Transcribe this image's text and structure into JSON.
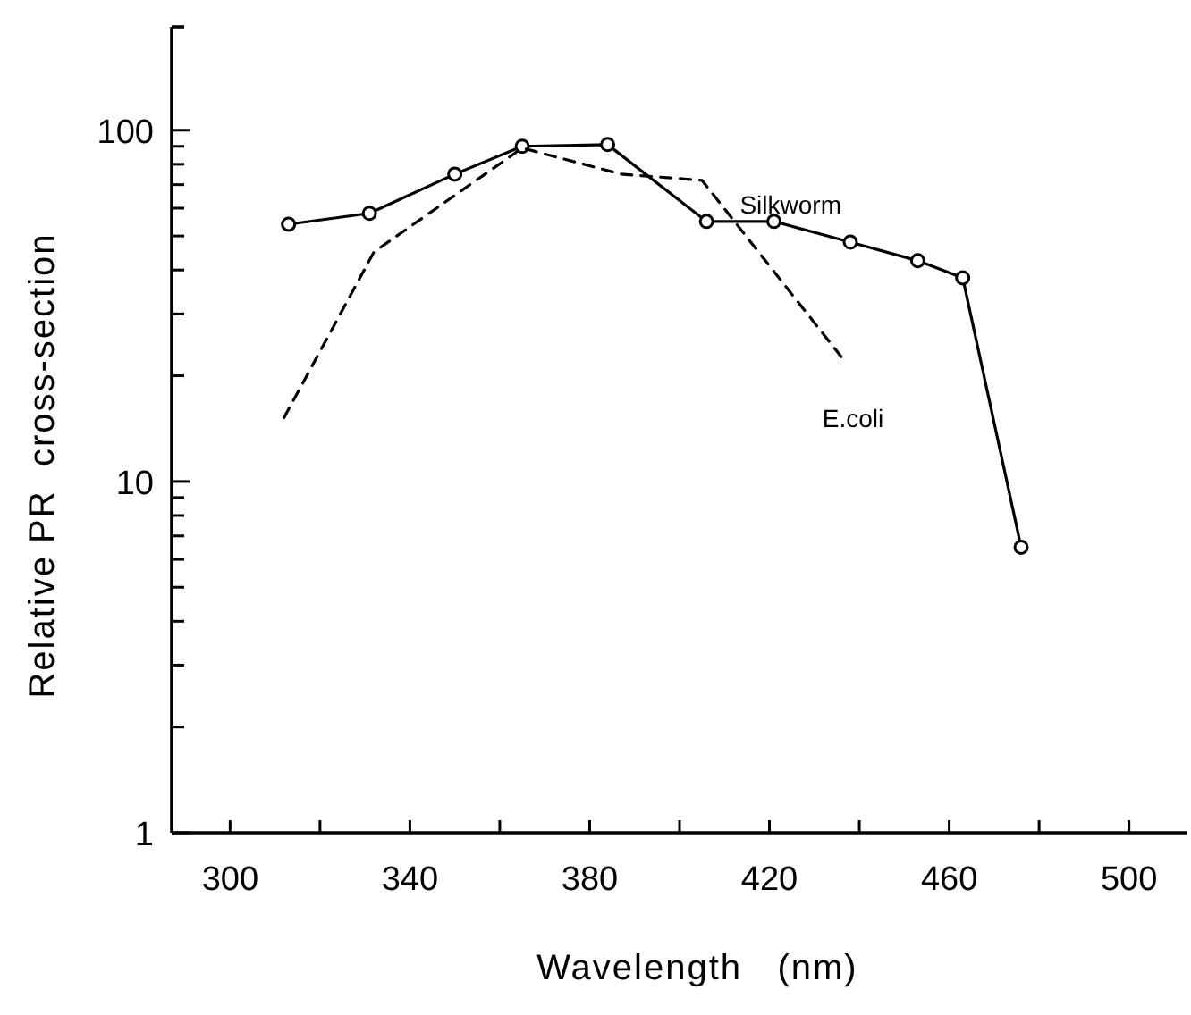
{
  "chart_data": {
    "type": "line",
    "xlabel": "Wavelength   (nm)",
    "ylabel": "Relative PR  cross-section",
    "log": "y",
    "xlim": [
      287,
      513
    ],
    "xticks": [
      300,
      {
        "value": 320,
        "label": null
      },
      340,
      {
        "value": 360,
        "label": null
      },
      380,
      {
        "value": 400,
        "label": null
      },
      420,
      {
        "value": 440,
        "label": null
      },
      460,
      {
        "value": 480,
        "label": null
      },
      500
    ],
    "ylim": [
      1,
      197
    ],
    "yticks": [
      1,
      {
        "value": 2,
        "label": null
      },
      {
        "value": 3,
        "label": null
      },
      {
        "value": 4,
        "label": null
      },
      {
        "value": 5,
        "label": null
      },
      {
        "value": 6,
        "label": null
      },
      {
        "value": 7,
        "label": null
      },
      {
        "value": 8,
        "label": null
      },
      {
        "value": 9,
        "label": null
      },
      10,
      {
        "value": 20,
        "label": null
      },
      {
        "value": 30,
        "label": null
      },
      {
        "value": 40,
        "label": null
      },
      {
        "value": 50,
        "label": null
      },
      {
        "value": 60,
        "label": null
      },
      {
        "value": 70,
        "label": null
      },
      {
        "value": 80,
        "label": null
      },
      {
        "value": 90,
        "label": null
      },
      100
    ],
    "grid": false,
    "series": [
      {
        "name": "Silkworm",
        "color": "#000000",
        "marker": "circle",
        "line_style": "solid",
        "x": [
          313,
          331,
          350,
          365,
          384,
          406,
          421,
          438,
          453,
          463,
          476
        ],
        "values": [
          54,
          58,
          75,
          90,
          91,
          55,
          55,
          48,
          42.5,
          38,
          6.5
        ]
      },
      {
        "name": "E.coli",
        "color": "#000000",
        "marker": "none",
        "line_style": "dashed",
        "x": [
          312,
          332,
          365,
          387,
          405,
          437
        ],
        "values": [
          15.2,
          45,
          89,
          75,
          72,
          21.8
        ]
      }
    ]
  }
}
